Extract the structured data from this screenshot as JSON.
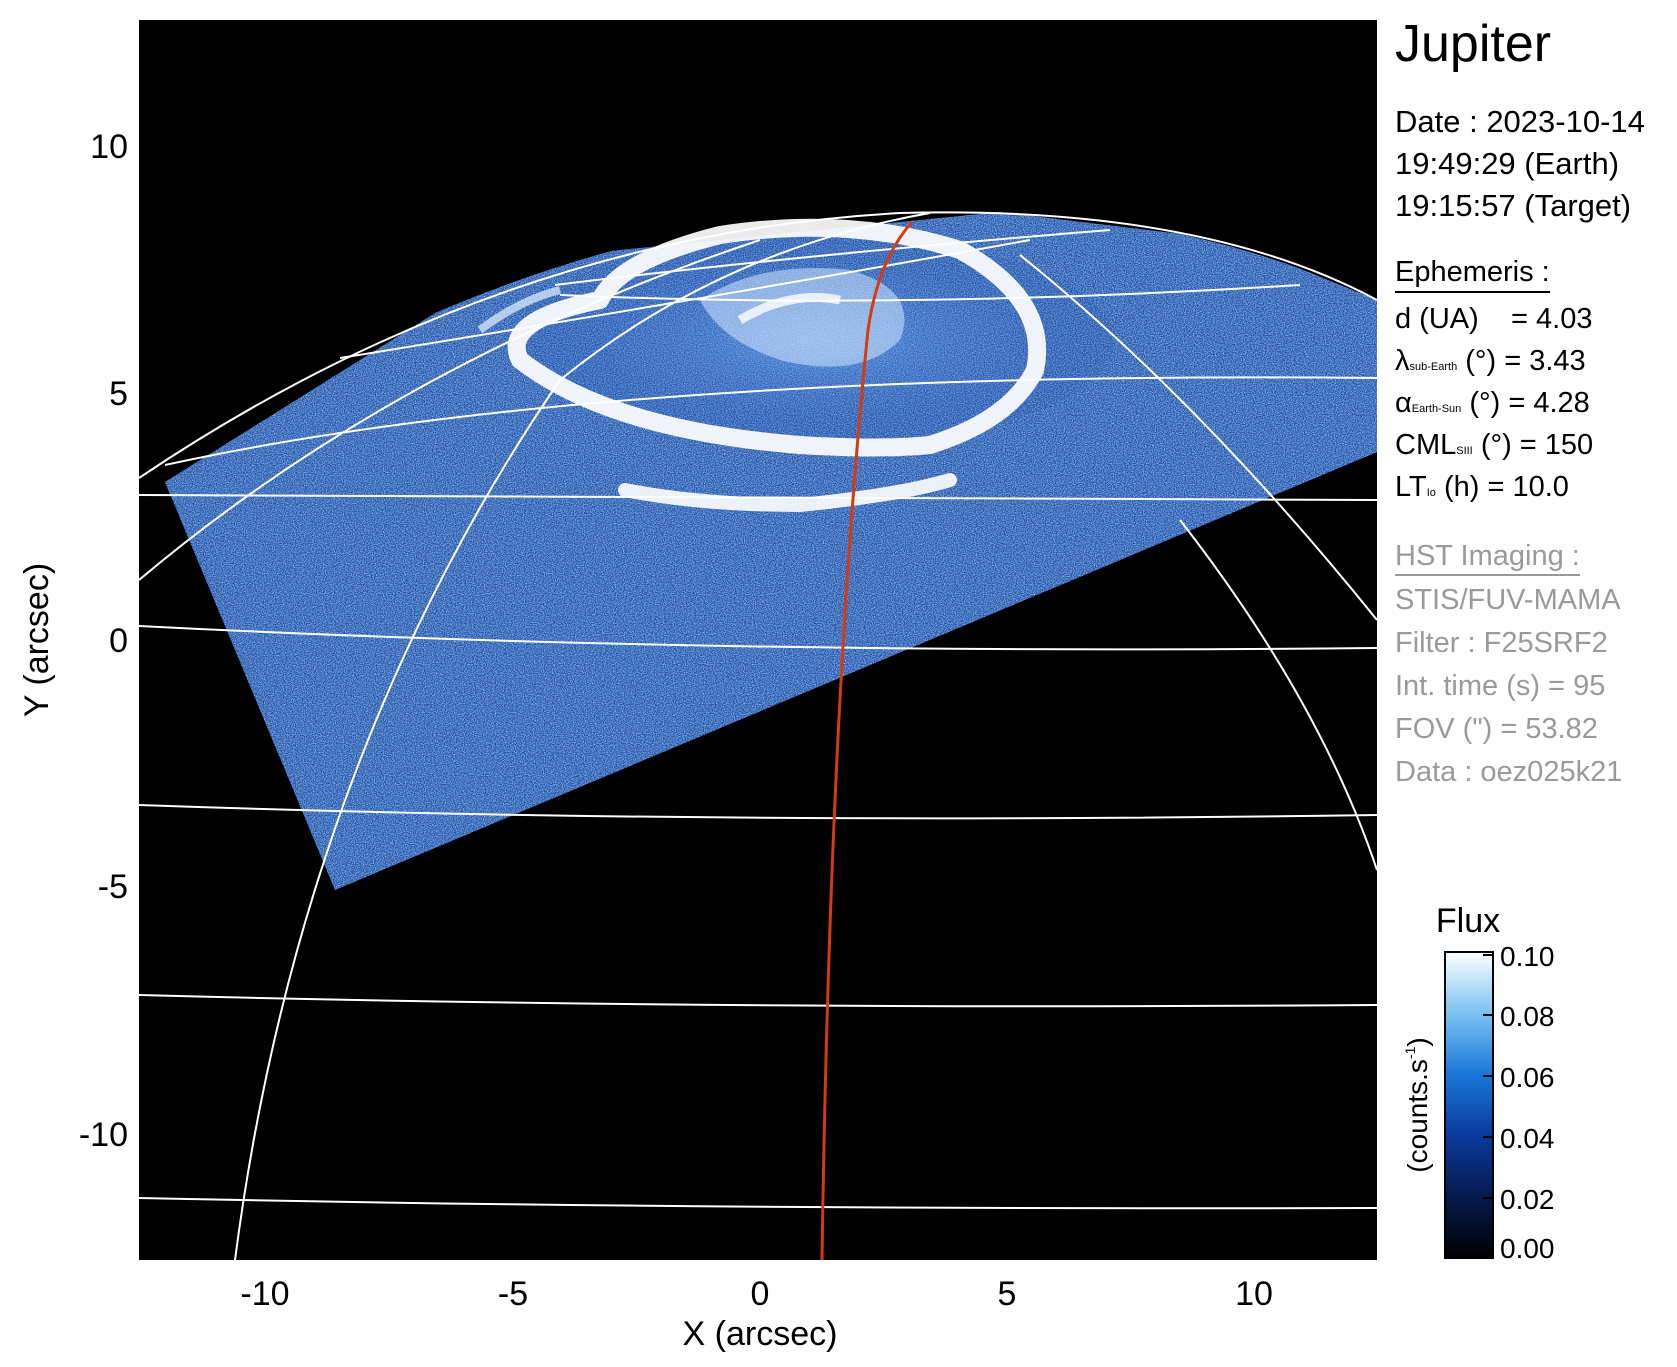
{
  "title": "Jupiter",
  "date_lines": [
    "Date : 2023-10-14",
    "19:49:29 (Earth)",
    "19:15:57 (Target)"
  ],
  "ephemeris": {
    "heading": "Ephemeris :",
    "d": {
      "label": "d (UA)",
      "value": "= 4.03"
    },
    "lat": {
      "symbol": "λ",
      "sub": "sub-Earth",
      "unit": "(°)",
      "value": "= 3.43"
    },
    "alpha": {
      "symbol": "α",
      "sub": "Earth-Sun",
      "unit": "(°)",
      "value": "= 4.28"
    },
    "cml": {
      "symbol": "CML",
      "sub": "SIII",
      "unit": "(°)",
      "value": "= 150"
    },
    "lt": {
      "symbol": "LT",
      "sub": "Io",
      "unit": "(h)",
      "value": "= 10.0"
    }
  },
  "hst": {
    "heading": "HST Imaging :",
    "lines": [
      "STIS/FUV-MAMA",
      "Filter : F25SRF2",
      "Int. time (s) = 95",
      "FOV (\") = 53.82",
      "Data : oez025k21"
    ]
  },
  "axes": {
    "xlabel": "X (arcsec)",
    "ylabel": "Y (arcsec)",
    "xticks": [
      "-10",
      "-5",
      "0",
      "5",
      "10"
    ],
    "yticks": [
      "10",
      "5",
      "0",
      "-5",
      "-10"
    ]
  },
  "colorbar": {
    "title": "Flux",
    "label": "(counts.s",
    "label_sup": "-1",
    "label_end": ")",
    "ticks": [
      "0.10",
      "0.08",
      "0.06",
      "0.04",
      "0.02",
      "0.00"
    ],
    "colors": [
      "#000000",
      "#061a4d",
      "#0a3a9c",
      "#1877d8",
      "#7cc2f2",
      "#ffffff"
    ]
  },
  "colors": {
    "grid": "#ffffff",
    "track": "#d63a0f",
    "background": "#000000"
  }
}
